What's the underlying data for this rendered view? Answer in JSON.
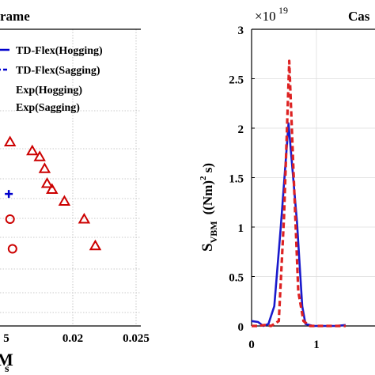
{
  "chart_data": [
    {
      "type": "scatter",
      "title": "rame",
      "xlabel": "M",
      "xlabel_sub": "s",
      "x_ticks": [
        "5",
        "0.02",
        "0.025"
      ],
      "xlim": [
        0.0145,
        0.025
      ],
      "grid": true,
      "legend": {
        "placement": "top",
        "entries": [
          {
            "label": "TD-Flex(Hogging)",
            "color": "#0000cc",
            "style": "line"
          },
          {
            "label": "TD-Flex(Sagging)",
            "color": "#0000cc",
            "style": "dashed"
          },
          {
            "label": "Exp(Hogging)",
            "color": "#cc0000",
            "style": "triangle"
          },
          {
            "label": "Exp(Sagging)",
            "color": "#cc0000",
            "style": "circle"
          }
        ]
      },
      "series": [
        {
          "marker": "triangle",
          "color": "#cc0000",
          "points": [
            [
              0.0148,
              0.62
            ],
            [
              0.0166,
              0.59
            ],
            [
              0.0172,
              0.57
            ],
            [
              0.0176,
              0.53
            ],
            [
              0.0178,
              0.48
            ],
            [
              0.0182,
              0.46
            ],
            [
              0.0192,
              0.42
            ],
            [
              0.0208,
              0.36
            ],
            [
              0.0217,
              0.27
            ]
          ]
        },
        {
          "marker": "circle",
          "color": "#cc0000",
          "points": [
            [
              0.0148,
              0.36
            ],
            [
              0.015,
              0.26
            ]
          ]
        },
        {
          "marker": "plus",
          "color": "#0000cc",
          "points": [
            [
              0.0147,
              0.445
            ]
          ]
        }
      ]
    },
    {
      "type": "line",
      "title": "Cas",
      "ylabel_main": "S",
      "ylabel_sub": "VBM",
      "ylabel_unit": "((Nm)",
      "ylabel_exp": "2",
      "ylabel_tail": " s)",
      "exponent_base": "×10",
      "exponent": "19",
      "ylim": [
        0,
        3
      ],
      "y_ticks": [
        "0",
        "0.5",
        "1",
        "1.5",
        "2",
        "2.5",
        "3"
      ],
      "x_ticks": [
        "0",
        "1"
      ],
      "xlim": [
        0,
        1.45
      ],
      "grid": true,
      "series": [
        {
          "name": "solid",
          "color": "#1a1acc",
          "style": "solid",
          "x": [
            0,
            0.1,
            0.18,
            0.26,
            0.35,
            0.45,
            0.57,
            0.7,
            0.78,
            0.83,
            0.95,
            1.1,
            1.3,
            1.45
          ],
          "y": [
            0.05,
            0.04,
            0.0,
            0.02,
            0.2,
            1.0,
            2.05,
            1.05,
            0.2,
            0.02,
            0.0,
            0.0,
            0.0,
            0.01
          ]
        },
        {
          "name": "dashed",
          "color": "#dd2222",
          "style": "dashed",
          "x": [
            0,
            0.1,
            0.2,
            0.3,
            0.42,
            0.5,
            0.58,
            0.65,
            0.72,
            0.8,
            0.9,
            1.1,
            1.3,
            1.45
          ],
          "y": [
            0.0,
            0.0,
            0.01,
            0.0,
            0.05,
            1.1,
            2.68,
            1.5,
            0.35,
            0.05,
            0.0,
            0.0,
            0.0,
            0.0
          ]
        }
      ]
    }
  ]
}
